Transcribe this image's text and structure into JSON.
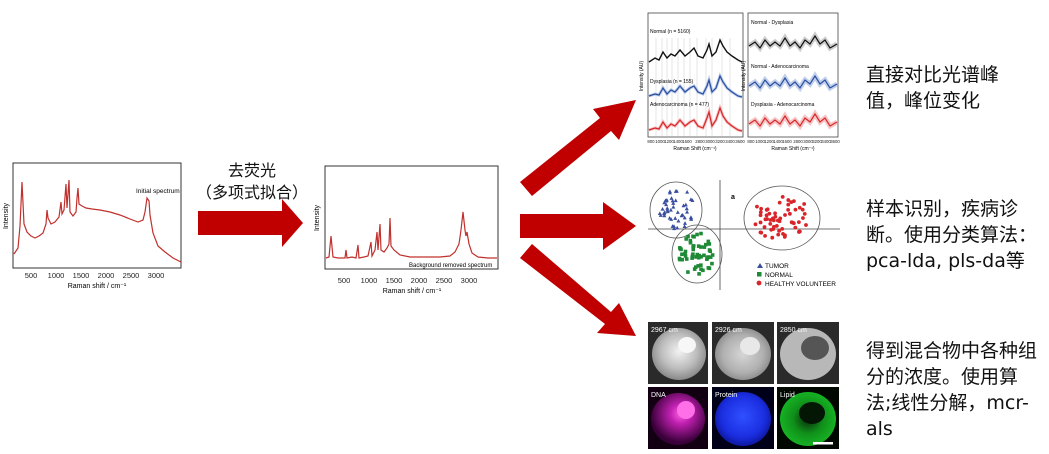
{
  "process_label": {
    "line1": "去荧光",
    "line2": "（多项式拟合）"
  },
  "raw_spectrum": {
    "ylabel": "Intensity",
    "xlabel": "Raman shift / cm⁻¹",
    "annotation": "Initial spectrum",
    "ticks": [
      "500",
      "1000",
      "1500",
      "2000",
      "2500",
      "3000"
    ]
  },
  "processed_spectrum": {
    "ylabel": "Intensity",
    "xlabel": "Raman shift / cm⁻¹",
    "annotation": "Background removed spectrum",
    "ticks": [
      "500",
      "1000",
      "1500",
      "2000",
      "2500",
      "3000"
    ]
  },
  "mean_spectra_panel": {
    "left_labels": [
      "Normal (n = 5160)",
      "Dysplasia (n = 155)",
      "Adenocarcinoma (n = 477)"
    ],
    "right_labels": [
      "Normal - Dysplasia",
      "Normal - Adenocarcinoma",
      "Dysplasia - Adenocarcinoma"
    ],
    "ylabel_left": "Intensity (AU)",
    "ylabel_right": "Intensity (AU)",
    "xlabel_left": "Raman Shift (cm⁻¹)",
    "xlabel_right": "Raman Shift (cm⁻¹)",
    "ticks": [
      "800",
      "1000",
      "1200",
      "1400",
      "1600",
      "2800",
      "3000",
      "3200",
      "3400",
      "3600"
    ]
  },
  "scatter_panel": {
    "panel_letter": "a",
    "legend": [
      "TUMOR",
      "NORMAL",
      "HEALTHY VOLUNTEER"
    ],
    "colors": {
      "tumor": "#3a4fa0",
      "normal": "#1e8a35",
      "healthy": "#d9252a"
    }
  },
  "imaging_panel": {
    "tiles": [
      "2967 cm",
      "2926 cm",
      "2850 cm",
      "DNA",
      "Protein",
      "Lipid"
    ]
  },
  "descriptions": {
    "peaks": "直接对比光谱峰值，峰位变化",
    "classification": "样本识别，疾病诊断。使用分类算法：pca-lda, pls-da等",
    "concentration": "得到混合物中各种组分的浓度。使用算法;线性分解，mcr-als"
  },
  "colors": {
    "arrow": "#c00000",
    "spectrum": "#c0302c"
  }
}
